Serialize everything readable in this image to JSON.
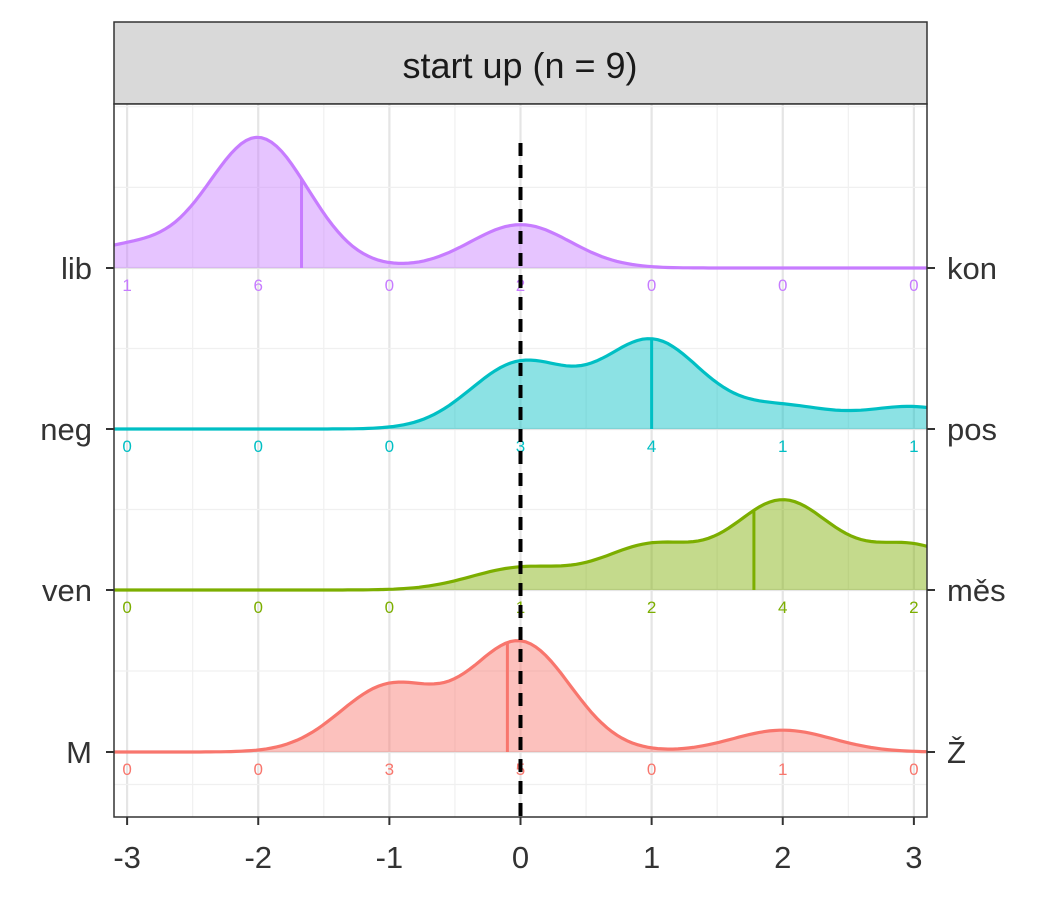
{
  "chart_data": {
    "type": "ridgeline density",
    "facet_label": "start up (n = 9)",
    "x_ticks": [
      "-3",
      "-2",
      "-1",
      "0",
      "1",
      "2",
      "3"
    ],
    "xlim": [
      -3.1,
      3.1
    ],
    "reference_line_x": 0,
    "grid": true,
    "series": [
      {
        "left_label": "M",
        "right_label": "Ž",
        "color": "#F8766D",
        "median": -0.1,
        "counts": [
          "0",
          "0",
          "3",
          "5",
          "0",
          "1",
          "0"
        ],
        "density_peak_relative_height": 0.69
      },
      {
        "left_label": "ven",
        "right_label": "měs",
        "color": "#7CAE00",
        "median": 1.78,
        "counts": [
          "0",
          "0",
          "0",
          "1",
          "2",
          "4",
          "2"
        ],
        "density_peak_relative_height": 0.56
      },
      {
        "left_label": "neg",
        "right_label": "pos",
        "color": "#00BFC4",
        "median": 1.0,
        "counts": [
          "0",
          "0",
          "0",
          "3",
          "4",
          "1",
          "1"
        ],
        "density_peak_relative_height": 0.56
      },
      {
        "left_label": "lib",
        "right_label": "kon",
        "color": "#C77CFF",
        "median": -1.67,
        "counts": [
          "1",
          "6",
          "0",
          "2",
          "0",
          "0",
          "0"
        ],
        "density_peak_relative_height": 0.81
      }
    ]
  }
}
